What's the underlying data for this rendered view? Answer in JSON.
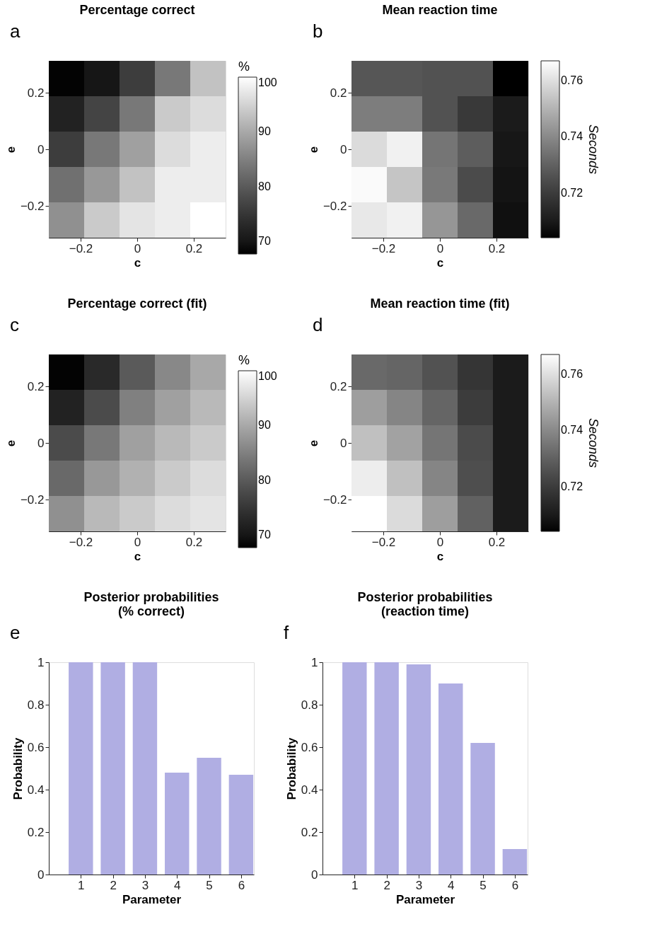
{
  "chart_data": [
    {
      "type": "heatmap",
      "annotations": [
        "a"
      ],
      "title": "Percentage correct",
      "xlabel": "c",
      "ylabel": "e",
      "clabel": "%",
      "x": [
        -0.25,
        -0.125,
        0,
        0.125,
        0.25
      ],
      "y": [
        0.25,
        0.125,
        0,
        -0.125,
        -0.25
      ],
      "xlim": [
        -0.3125,
        0.3125
      ],
      "ylim": [
        -0.3125,
        0.3125
      ],
      "xticks": [
        -0.2,
        0,
        0.2
      ],
      "yticks": [
        -0.2,
        0,
        0.2
      ],
      "clim": [
        67.7,
        100
      ],
      "cticks": [
        70,
        80,
        90,
        100
      ],
      "cells": [
        [
          68,
          70,
          76,
          84,
          93
        ],
        [
          72,
          77,
          84,
          94,
          96
        ],
        [
          76,
          84,
          89,
          96,
          98
        ],
        [
          83,
          88,
          93,
          98,
          98
        ],
        [
          87,
          94,
          97,
          98,
          100
        ]
      ]
    },
    {
      "type": "heatmap",
      "annotations": [
        "b"
      ],
      "title": "Mean reaction time",
      "xlabel": "c",
      "ylabel": "e",
      "clabel": "Seconds",
      "x": [
        -0.25,
        -0.125,
        0,
        0.125,
        0.25
      ],
      "y": [
        0.25,
        0.125,
        0,
        -0.125,
        -0.25
      ],
      "xlim": [
        -0.3125,
        0.3125
      ],
      "ylim": [
        -0.3125,
        0.3125
      ],
      "xticks": [
        -0.2,
        0,
        0.2
      ],
      "yticks": [
        -0.2,
        0,
        0.2
      ],
      "clim": [
        0.704,
        0.767
      ],
      "cticks": [
        0.72,
        0.74,
        0.76
      ],
      "cells": [
        [
          0.727,
          0.727,
          0.726,
          0.726,
          0.704
        ],
        [
          0.737,
          0.737,
          0.726,
          0.719,
          0.71
        ],
        [
          0.759,
          0.764,
          0.735,
          0.729,
          0.709
        ],
        [
          0.766,
          0.754,
          0.736,
          0.724,
          0.708
        ],
        [
          0.762,
          0.764,
          0.743,
          0.732,
          0.707
        ]
      ]
    },
    {
      "type": "heatmap",
      "annotations": [
        "c"
      ],
      "title": "Percentage correct (fit)",
      "xlabel": "c",
      "ylabel": "e",
      "clabel": "%",
      "x": [
        -0.25,
        -0.125,
        0,
        0.125,
        0.25
      ],
      "y": [
        0.25,
        0.125,
        0,
        -0.125,
        -0.25
      ],
      "xlim": [
        -0.3125,
        0.3125
      ],
      "ylim": [
        -0.3125,
        0.3125
      ],
      "xticks": [
        -0.2,
        0,
        0.2
      ],
      "yticks": [
        -0.2,
        0,
        0.2
      ],
      "clim": [
        67.7,
        100
      ],
      "cticks": [
        70,
        80,
        90,
        100
      ],
      "cells": [
        [
          68,
          73,
          80,
          86,
          90
        ],
        [
          72,
          78,
          85,
          89,
          92
        ],
        [
          78,
          84,
          89,
          92,
          94
        ],
        [
          82,
          88,
          91,
          94,
          96
        ],
        [
          87,
          92,
          94,
          96,
          97
        ]
      ]
    },
    {
      "type": "heatmap",
      "annotations": [
        "d"
      ],
      "title": "Mean reaction time (fit)",
      "xlabel": "c",
      "ylabel": "e",
      "clabel": "Seconds",
      "x": [
        -0.25,
        -0.125,
        0,
        0.125,
        0.25
      ],
      "y": [
        0.25,
        0.125,
        0,
        -0.125,
        -0.25
      ],
      "xlim": [
        -0.3125,
        0.3125
      ],
      "ylim": [
        -0.3125,
        0.3125
      ],
      "xticks": [
        -0.2,
        0,
        0.2
      ],
      "yticks": [
        -0.2,
        0,
        0.2
      ],
      "clim": [
        0.704,
        0.767
      ],
      "cticks": [
        0.72,
        0.74,
        0.76
      ],
      "cells": [
        [
          0.732,
          0.731,
          0.726,
          0.718,
          0.71
        ],
        [
          0.745,
          0.739,
          0.731,
          0.72,
          0.71
        ],
        [
          0.753,
          0.746,
          0.735,
          0.724,
          0.71
        ],
        [
          0.763,
          0.753,
          0.739,
          0.725,
          0.71
        ],
        [
          0.767,
          0.759,
          0.745,
          0.73,
          0.71
        ]
      ]
    },
    {
      "type": "bar",
      "annotations": [
        "e"
      ],
      "title": "Posterior probabilities\n(% correct)",
      "xlabel": "Parameter",
      "ylabel": "Probability",
      "x": [
        1,
        2,
        3,
        4,
        5,
        6
      ],
      "xlim": [
        0,
        6.4
      ],
      "xticks": [
        1,
        2,
        3,
        4,
        5,
        6
      ],
      "ylim": [
        0,
        1
      ],
      "yticks": [
        0,
        0.2,
        0.4,
        0.6,
        0.8,
        1
      ],
      "series": [
        {
          "color": "#b0aee3",
          "values": [
            1,
            1,
            1,
            0.48,
            0.55,
            0.47
          ]
        }
      ]
    },
    {
      "type": "bar",
      "annotations": [
        "f"
      ],
      "title": "Posterior probabilities\n(reaction time)",
      "xlabel": "Parameter",
      "ylabel": "Probability",
      "x": [
        1,
        2,
        3,
        4,
        5,
        6
      ],
      "xlim": [
        0,
        6.4
      ],
      "xticks": [
        1,
        2,
        3,
        4,
        5,
        6
      ],
      "ylim": [
        0,
        1
      ],
      "yticks": [
        0,
        0.2,
        0.4,
        0.6,
        0.8,
        1
      ],
      "series": [
        {
          "color": "#b0aee3",
          "values": [
            1,
            1,
            0.99,
            0.9,
            0.62,
            0.12
          ]
        }
      ]
    }
  ]
}
